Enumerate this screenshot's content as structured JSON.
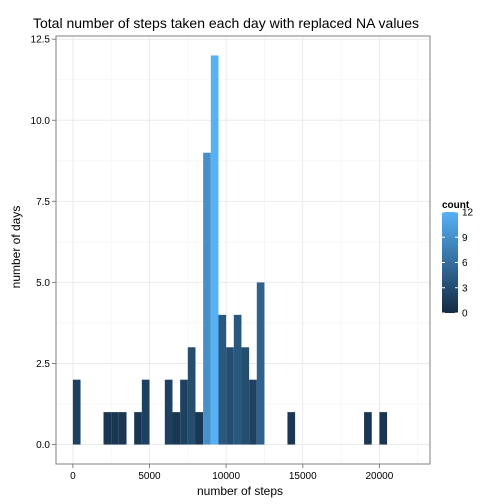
{
  "chart_data": {
    "type": "bar",
    "title": "Total number of steps taken each day with replaced NA values",
    "xlabel": "number of steps",
    "ylabel": "number of days",
    "xlim": [
      -1100,
      23300
    ],
    "ylim": [
      -0.6,
      12.6
    ],
    "x_ticks": [
      0,
      5000,
      10000,
      15000,
      20000
    ],
    "x_tick_labels": [
      "0",
      "5000",
      "10000",
      "15000",
      "20000"
    ],
    "y_ticks": [
      0,
      2.5,
      5,
      7.5,
      10,
      12.5
    ],
    "y_tick_labels": [
      "0.0",
      "2.5",
      "5.0",
      "7.5",
      "10.0",
      "12.5"
    ],
    "grid": true,
    "legend_position": "right",
    "bin_width": 500,
    "bins": [
      {
        "x": 250,
        "count": 2
      },
      {
        "x": 2250,
        "count": 1
      },
      {
        "x": 2750,
        "count": 1
      },
      {
        "x": 3250,
        "count": 1
      },
      {
        "x": 4250,
        "count": 1
      },
      {
        "x": 4750,
        "count": 2
      },
      {
        "x": 6250,
        "count": 2
      },
      {
        "x": 6750,
        "count": 1
      },
      {
        "x": 7250,
        "count": 2
      },
      {
        "x": 7750,
        "count": 3
      },
      {
        "x": 8250,
        "count": 1
      },
      {
        "x": 8750,
        "count": 9
      },
      {
        "x": 9250,
        "count": 12
      },
      {
        "x": 9750,
        "count": 4
      },
      {
        "x": 10250,
        "count": 3
      },
      {
        "x": 10750,
        "count": 4
      },
      {
        "x": 11250,
        "count": 3
      },
      {
        "x": 11750,
        "count": 2
      },
      {
        "x": 12250,
        "count": 5
      },
      {
        "x": 14250,
        "count": 1
      },
      {
        "x": 19250,
        "count": 1
      },
      {
        "x": 20250,
        "count": 1
      }
    ],
    "legend": {
      "title": "count",
      "breaks": [
        0,
        3,
        6,
        9,
        12
      ],
      "break_labels": [
        "0",
        "3",
        "6",
        "9",
        "12"
      ],
      "color_low": "#132B43",
      "color_high": "#56B1F7",
      "range": [
        0,
        12
      ]
    },
    "colors": {
      "panel_border": "#7f7f7f",
      "grid_major": "#ebebeb",
      "grid_minor": "#f5f5f5"
    }
  }
}
